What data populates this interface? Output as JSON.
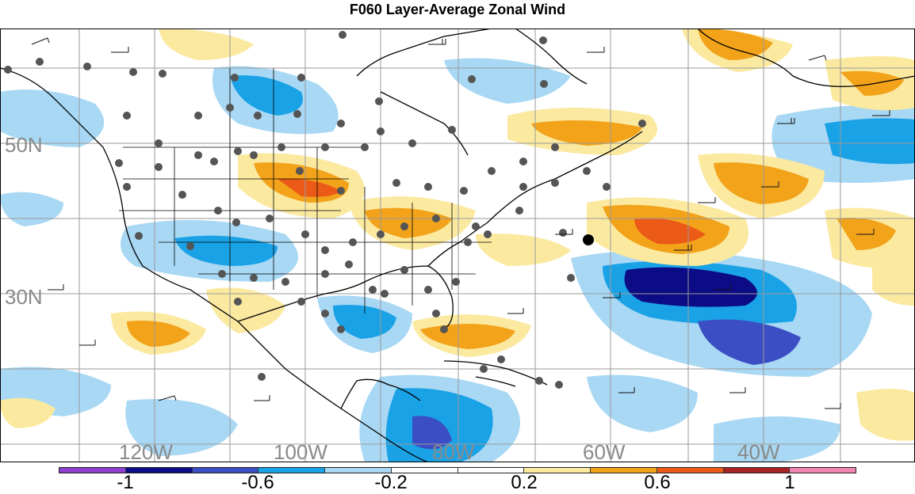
{
  "title": "F060 Layer-Average Zonal Wind",
  "lat_labels": [
    "50N",
    "30N"
  ],
  "lon_labels": [
    "120W",
    "100W",
    "80W",
    "60W",
    "40W"
  ],
  "colorbar": {
    "colors": [
      "#8e3fd0",
      "#0c0c86",
      "#3c4ec4",
      "#1aa2e6",
      "#a8d8f4",
      "#ffffff",
      "#ffffff",
      "#fbe9a0",
      "#f2a31a",
      "#ec5a18",
      "#a82424",
      "#ee85b2"
    ],
    "tick_labels": [
      "-1",
      "-0.6",
      "-0.2",
      "0.2",
      "0.6",
      "1"
    ]
  }
}
